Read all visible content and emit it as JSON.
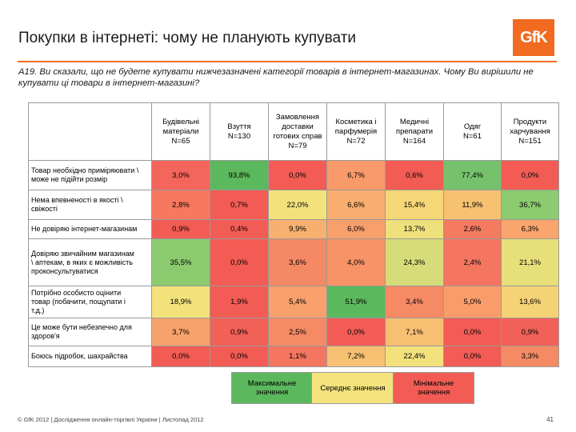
{
  "header": {
    "title": "Покупки в інтернеті: чому не планують купувати",
    "logo_text": "GfK",
    "question": "А19. Ви сказали, що не будете купувати нижчезазначені категорії товарів в інтернет-магазинах. Чому Ви вирішили не купувати ці товари в інтернет-магазині?"
  },
  "colors": {
    "accent": "#f26b21",
    "max": "#5cb85c",
    "mid": "#f4e37d",
    "min": "#f25c54"
  },
  "chart_data": {
    "type": "table",
    "title": "Покупки в інтернеті: чому не планують купувати",
    "columns": [
      [
        "Будівельні",
        "матеріали",
        "N=65"
      ],
      [
        "Взуття",
        "N=130"
      ],
      [
        "Замовлення",
        "доставки",
        "готових справ",
        "N=79"
      ],
      [
        "Косметика і",
        "парфумерія",
        "N=72"
      ],
      [
        "Медичні",
        "препарати",
        "N=164"
      ],
      [
        "Одяг",
        "N=61"
      ],
      [
        "Продукти",
        "харчування",
        "N=151"
      ]
    ],
    "rows": [
      {
        "label": [
          "Товар необхідно приміряювати \\",
          "може не підійти розмір"
        ],
        "values": [
          "3,0%",
          "93,8%",
          "0,0%",
          "6,7%",
          "0,6%",
          "77,4%",
          "0,0%"
        ],
        "colors": [
          "#f4665c",
          "#5cb85c",
          "#f25c54",
          "#f89a6a",
          "#f25c54",
          "#76c26c",
          "#f25c54"
        ]
      },
      {
        "label": [
          "Нема впевненості в якості \\",
          "свіжості"
        ],
        "values": [
          "2,8%",
          "0,7%",
          "22,0%",
          "6,6%",
          "15,4%",
          "11,9%",
          "36,7%"
        ],
        "colors": [
          "#f6785f",
          "#f25c54",
          "#f3e27c",
          "#f9ad6f",
          "#f6d777",
          "#f7c172",
          "#8ccb6f"
        ]
      },
      {
        "label": [
          "Не довіряю інтернет-магазинам"
        ],
        "values": [
          "0,9%",
          "0,4%",
          "9,9%",
          "6,0%",
          "13,7%",
          "2,6%",
          "6,3%"
        ],
        "colors": [
          "#f25c54",
          "#f25c54",
          "#f7b06f",
          "#f8a06c",
          "#eee07c",
          "#f47a60",
          "#f9a56d"
        ]
      },
      {
        "label": [
          "Довіряю звичайним магазинам",
          "\\ аптекам, в яких є можливість",
          "проконсультуватися"
        ],
        "values": [
          "35,5%",
          "0,0%",
          "3,6%",
          "4,0%",
          "24,3%",
          "2,4%",
          "21,1%"
        ],
        "colors": [
          "#8bca6e",
          "#f25c54",
          "#f58865",
          "#f79366",
          "#d6dc79",
          "#f47660",
          "#e6df7a"
        ]
      },
      {
        "label": [
          "Потрібно особисто оцінити",
          "товар (побачити, пощупати і",
          "т.д.)"
        ],
        "values": [
          "18,9%",
          "1,9%",
          "5,4%",
          "51,9%",
          "3,4%",
          "5,0%",
          "13,6%"
        ],
        "colors": [
          "#f3e27c",
          "#f25c54",
          "#f8a16c",
          "#5cb85c",
          "#f58a65",
          "#f89d6a",
          "#f6d276"
        ]
      },
      {
        "label": [
          "Це може бути небезпечно для",
          "здоров'я"
        ],
        "values": [
          "3,7%",
          "0,9%",
          "2,5%",
          "0,0%",
          "7,1%",
          "0,0%",
          "0,9%"
        ],
        "colors": [
          "#f8a26b",
          "#f26158",
          "#f58a65",
          "#f25c54",
          "#f7bf72",
          "#f25c54",
          "#f26158"
        ]
      },
      {
        "label": [
          "Боюсь підробок, шахрайства"
        ],
        "values": [
          "0,0%",
          "0,0%",
          "1,1%",
          "7,2%",
          "22,4%",
          "0,0%",
          "3,3%"
        ],
        "colors": [
          "#f25c54",
          "#f25c54",
          "#f47560",
          "#f7c072",
          "#f3e27c",
          "#f25c54",
          "#f58b65"
        ]
      }
    ]
  },
  "legend": {
    "max_label": "Максимальне значення",
    "mid_label": "Середнє значення",
    "min_label": "Мінімальне значення"
  },
  "footer": {
    "text": "© GfK 2012 | Дослідження онлайн-торгівлі України | Листопад 2012",
    "page": "41"
  }
}
